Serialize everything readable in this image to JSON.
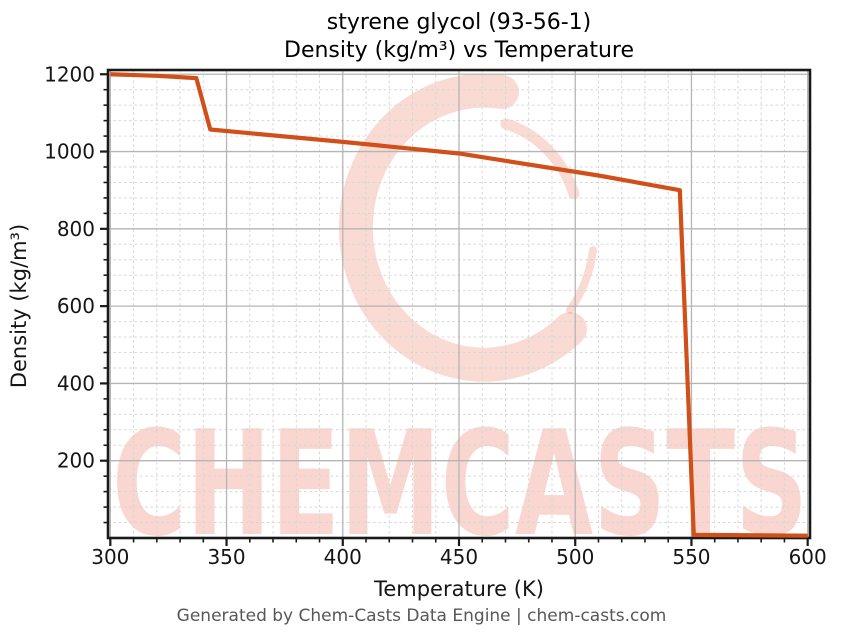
{
  "header": {
    "title_line1": "styrene glycol (93-56-1)",
    "title_line2": "Density (kg/m³) vs Temperature"
  },
  "footer": {
    "credit": "Generated by Chem-Casts Data Engine | chem-casts.com"
  },
  "watermark": {
    "text": "CHEMCASTS"
  },
  "colors": {
    "line": "#d1501a",
    "watermark": "#e8593a",
    "grid_major": "#b5b5b5",
    "grid_minor": "#d6d6d6",
    "axis": "#1a1a1a",
    "tick_label": "#151515",
    "footer_text": "#575757"
  },
  "chart_data": {
    "type": "line",
    "title": "styrene glycol (93-56-1)",
    "subtitle": "Density (kg/m³) vs Temperature",
    "xlabel": "Temperature (K)",
    "ylabel": "Density (kg/m³)",
    "xlim": [
      299,
      601
    ],
    "ylim": [
      0,
      1211
    ],
    "x_major_ticks": [
      300,
      350,
      400,
      450,
      500,
      550,
      600
    ],
    "x_minor_step": 10,
    "y_major_ticks": [
      200,
      400,
      600,
      800,
      1000,
      1200
    ],
    "y_minor_step": 40,
    "grid": {
      "major": "solid",
      "minor": "dashed",
      "visible": true
    },
    "legend_position": "none",
    "series": [
      {
        "name": "Density (kg/m³)",
        "color": "#d1501a",
        "points": [
          [
            300,
            1200
          ],
          [
            320,
            1196
          ],
          [
            337,
            1190
          ],
          [
            343,
            1057
          ],
          [
            400,
            1025
          ],
          [
            450,
            995
          ],
          [
            510,
            938
          ],
          [
            545,
            900
          ],
          [
            551,
            8
          ],
          [
            600,
            6
          ]
        ]
      }
    ]
  }
}
